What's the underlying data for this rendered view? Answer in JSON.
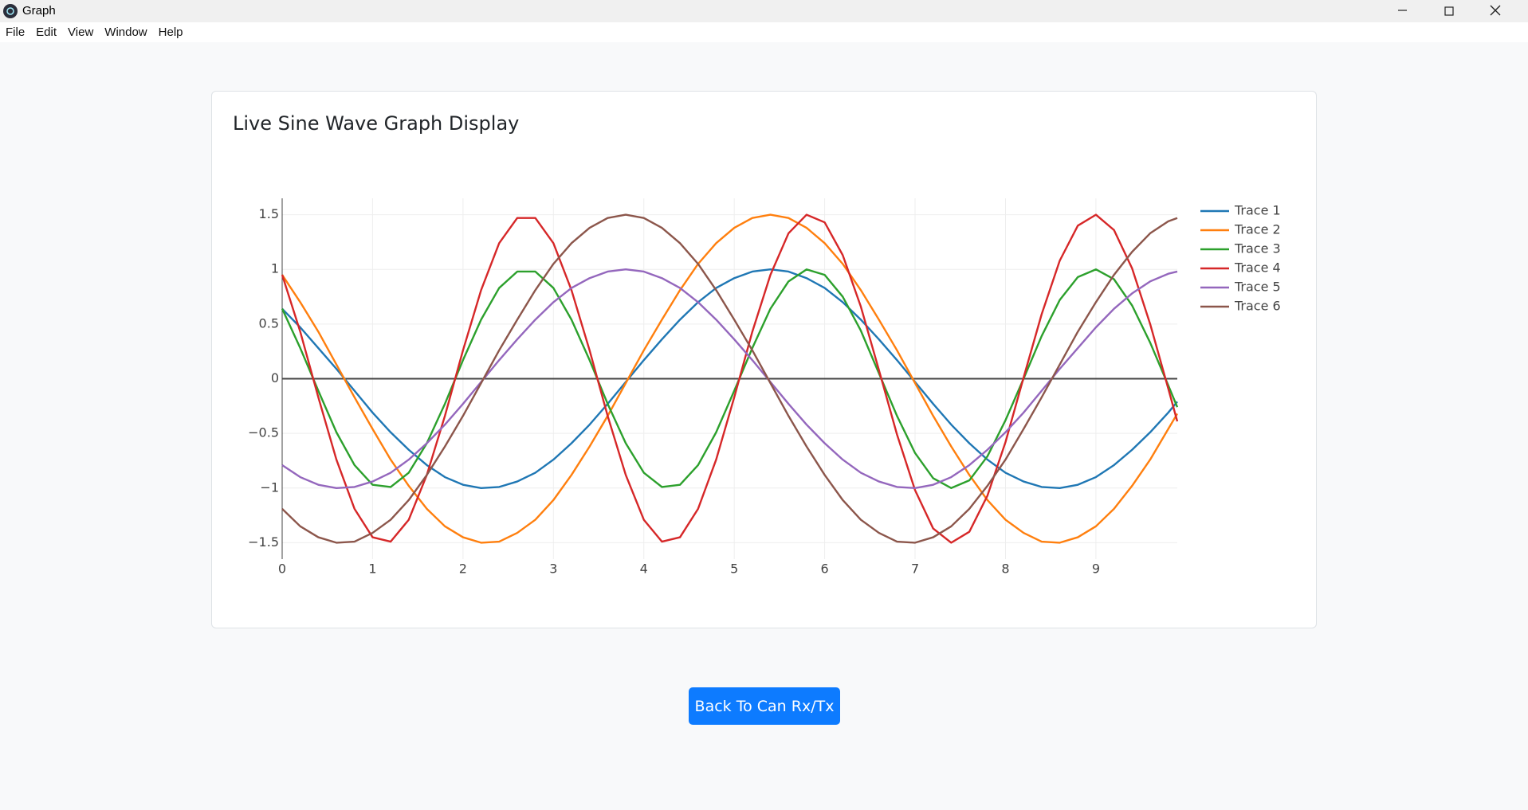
{
  "window": {
    "title": "Graph",
    "menu": [
      "File",
      "Edit",
      "View",
      "Window",
      "Help"
    ]
  },
  "button": "Back To Can Rx/Tx",
  "chart_data": {
    "type": "line",
    "title": "Live Sine Wave Graph Display",
    "x": [
      0,
      0.2,
      0.4,
      0.6,
      0.8,
      1,
      1.2,
      1.4,
      1.6,
      1.8,
      2,
      2.2,
      2.4,
      2.6,
      2.8,
      3,
      3.2,
      3.4,
      3.6,
      3.8,
      4,
      4.2,
      4.4,
      4.6,
      4.8,
      5,
      5.2,
      5.4,
      5.6,
      5.8,
      6,
      6.2,
      6.4,
      6.6,
      6.8,
      7,
      7.2,
      7.4,
      7.6,
      7.8,
      8,
      8.2,
      8.4,
      8.6,
      8.8,
      9,
      9.2,
      9.4,
      9.6,
      9.8,
      9.9
    ],
    "series": [
      {
        "name": "Trace 1",
        "color": "#1f77b4",
        "values": [
          0.64,
          0.47,
          0.28,
          0.09,
          -0.11,
          -0.31,
          -0.49,
          -0.65,
          -0.79,
          -0.9,
          -0.97,
          -1,
          -0.99,
          -0.94,
          -0.86,
          -0.74,
          -0.59,
          -0.42,
          -0.23,
          -0.03,
          0.17,
          0.36,
          0.54,
          0.7,
          0.83,
          0.92,
          0.98,
          1,
          0.98,
          0.92,
          0.83,
          0.7,
          0.54,
          0.36,
          0.17,
          -0.03,
          -0.23,
          -0.42,
          -0.59,
          -0.74,
          -0.86,
          -0.94,
          -0.99,
          -1,
          -0.97,
          -0.9,
          -0.79,
          -0.65,
          -0.49,
          -0.31,
          -0.21
        ]
      },
      {
        "name": "Trace 2",
        "color": "#ff7f0e",
        "values": [
          0.95,
          0.7,
          0.43,
          0.13,
          -0.17,
          -0.46,
          -0.74,
          -0.98,
          -1.19,
          -1.35,
          -1.45,
          -1.5,
          -1.49,
          -1.41,
          -1.29,
          -1.11,
          -0.88,
          -0.62,
          -0.34,
          -0.04,
          0.26,
          0.54,
          0.81,
          1.05,
          1.24,
          1.38,
          1.47,
          1.5,
          1.47,
          1.38,
          1.24,
          1.05,
          0.81,
          0.54,
          0.26,
          -0.04,
          -0.34,
          -0.62,
          -0.88,
          -1.11,
          -1.29,
          -1.41,
          -1.49,
          -1.5,
          -1.45,
          -1.35,
          -1.19,
          -0.98,
          -0.74,
          -0.46,
          -0.32
        ]
      },
      {
        "name": "Trace 3",
        "color": "#2ca02c",
        "values": [
          0.64,
          0.28,
          -0.11,
          -0.49,
          -0.79,
          -0.97,
          -0.99,
          -0.86,
          -0.59,
          -0.23,
          0.17,
          0.54,
          0.83,
          0.98,
          0.98,
          0.83,
          0.54,
          0.17,
          -0.23,
          -0.59,
          -0.86,
          -0.99,
          -0.97,
          -0.79,
          -0.49,
          -0.11,
          0.28,
          0.64,
          0.89,
          1,
          0.95,
          0.75,
          0.44,
          0.05,
          -0.34,
          -0.68,
          -0.91,
          -1,
          -0.93,
          -0.71,
          -0.38,
          0,
          0.39,
          0.72,
          0.93,
          1,
          0.91,
          0.67,
          0.33,
          -0.06,
          -0.26
        ]
      },
      {
        "name": "Trace 4",
        "color": "#d62728",
        "values": [
          0.95,
          0.43,
          -0.17,
          -0.74,
          -1.19,
          -1.45,
          -1.49,
          -1.29,
          -0.88,
          -0.34,
          0.26,
          0.81,
          1.24,
          1.47,
          1.47,
          1.24,
          0.81,
          0.26,
          -0.34,
          -0.88,
          -1.29,
          -1.49,
          -1.45,
          -1.19,
          -0.74,
          -0.17,
          0.43,
          0.95,
          1.33,
          1.5,
          1.43,
          1.13,
          0.66,
          0.08,
          -0.51,
          -1.02,
          -1.37,
          -1.5,
          -1.4,
          -1.07,
          -0.58,
          0.01,
          0.59,
          1.08,
          1.4,
          1.5,
          1.36,
          1.01,
          0.5,
          -0.09,
          -0.39
        ]
      },
      {
        "name": "Trace 5",
        "color": "#9467bd",
        "values": [
          -0.79,
          -0.9,
          -0.97,
          -1,
          -0.99,
          -0.94,
          -0.86,
          -0.74,
          -0.59,
          -0.42,
          -0.23,
          -0.03,
          0.17,
          0.36,
          0.54,
          0.7,
          0.83,
          0.92,
          0.98,
          1,
          0.98,
          0.92,
          0.83,
          0.7,
          0.54,
          0.36,
          0.17,
          -0.03,
          -0.23,
          -0.42,
          -0.59,
          -0.74,
          -0.86,
          -0.94,
          -0.99,
          -1,
          -0.97,
          -0.9,
          -0.79,
          -0.65,
          -0.49,
          -0.31,
          -0.11,
          0.09,
          0.28,
          0.47,
          0.64,
          0.78,
          0.89,
          0.96,
          0.98
        ]
      },
      {
        "name": "Trace 6",
        "color": "#8c564b",
        "values": [
          -1.19,
          -1.35,
          -1.45,
          -1.5,
          -1.49,
          -1.41,
          -1.29,
          -1.11,
          -0.88,
          -0.62,
          -0.34,
          -0.04,
          0.26,
          0.54,
          0.81,
          1.05,
          1.24,
          1.38,
          1.47,
          1.5,
          1.47,
          1.38,
          1.24,
          1.05,
          0.81,
          0.54,
          0.26,
          -0.04,
          -0.34,
          -0.62,
          -0.88,
          -1.11,
          -1.29,
          -1.41,
          -1.49,
          -1.5,
          -1.45,
          -1.35,
          -1.19,
          -0.98,
          -0.74,
          -0.46,
          -0.17,
          0.13,
          0.43,
          0.7,
          0.95,
          1.16,
          1.33,
          1.44,
          1.47
        ]
      }
    ],
    "xlim": [
      0,
      9.9
    ],
    "xticks": [
      0,
      1,
      2,
      3,
      4,
      5,
      6,
      7,
      8,
      9
    ],
    "ylim": [
      -1.65,
      1.65
    ],
    "yticks": [
      {
        "value": -1.5,
        "label": "−1.5"
      },
      {
        "value": -1,
        "label": "−1"
      },
      {
        "value": -0.5,
        "label": "−0.5"
      },
      0,
      0.5,
      1,
      1.5
    ],
    "grid": true,
    "legend": "right"
  }
}
